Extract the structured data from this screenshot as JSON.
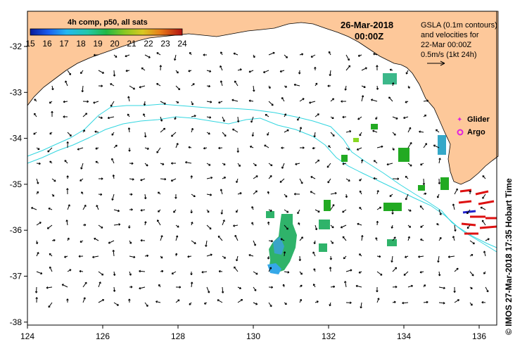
{
  "colorbar": {
    "title": "4h comp, p50, all sats",
    "ticks": [
      "15",
      "16",
      "17",
      "18",
      "19",
      "20",
      "21",
      "22",
      "23",
      "24"
    ]
  },
  "header": {
    "date": "26-Mar-2018",
    "time": "00:00Z"
  },
  "legend": {
    "lines": [
      "GSLA (0.1m contours)",
      "and velocities for",
      "22-Mar 00:00Z",
      "0.5m/s (1kt 24h)"
    ],
    "glider": "Glider",
    "argo": "Argo"
  },
  "axes": {
    "x_ticks": [
      "124",
      "126",
      "128",
      "130",
      "132",
      "134",
      "136"
    ],
    "y_ticks": [
      "-32",
      "-33",
      "-34",
      "-35",
      "-36",
      "-37",
      "-38"
    ]
  },
  "credit": "© IMOS 27-Mar-2018 17:35 Hobart Time",
  "colors": {
    "land": "#fdc89a",
    "sea": "#ffffff",
    "contour": "#33d6e0",
    "frame": "#000000",
    "glider": "#e020e0",
    "argo": "#e020e0",
    "sst_warm": "#dd1111",
    "sst_cool": "#2222cc"
  }
}
